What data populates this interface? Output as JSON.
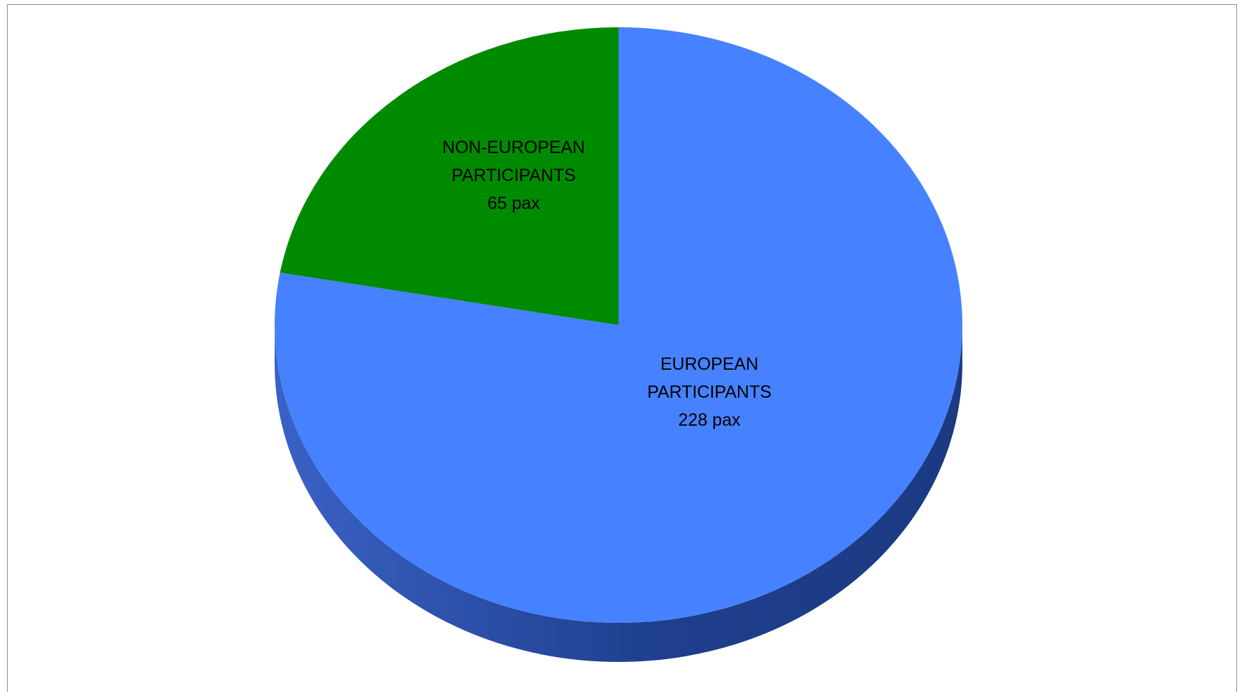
{
  "chart_data": {
    "type": "pie",
    "style": "3d",
    "title": "",
    "slices": [
      {
        "category": "EUROPEAN PARTICIPANTS",
        "value": 228,
        "label_lines": [
          "EUROPEAN",
          "PARTICIPANTS",
          "228 pax"
        ],
        "color": "#4682ff",
        "side_color": "#2a4fa8"
      },
      {
        "category": "NON-EUROPEAN PARTICIPANTS",
        "value": 65,
        "label_lines": [
          "NON-EUROPEAN",
          "PARTICIPANTS",
          "65 pax"
        ],
        "color": "#008a00",
        "side_color": "#005a00"
      }
    ],
    "legend": "none"
  }
}
